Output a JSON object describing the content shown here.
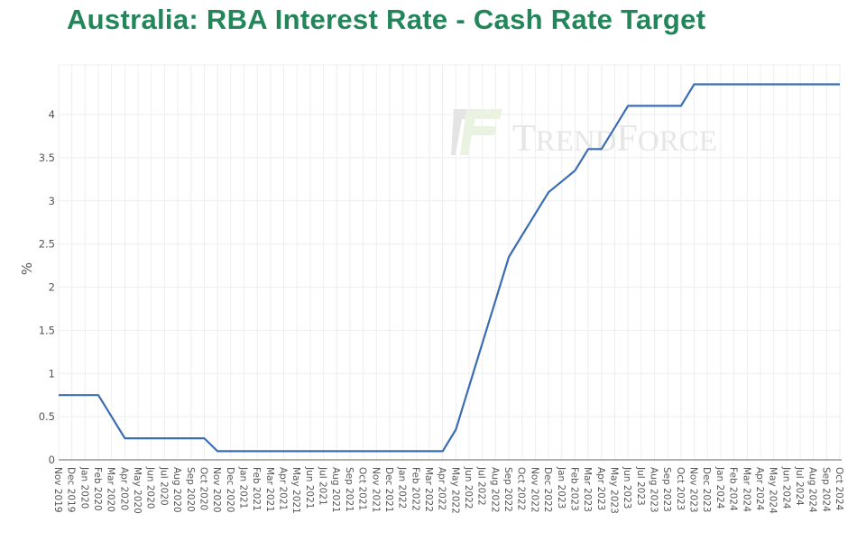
{
  "title": "Australia: RBA Interest Rate - Cash Rate Target",
  "watermark": {
    "text_big1": "T",
    "text_small1": "REND",
    "text_big2": "F",
    "text_small2": "ORCE"
  },
  "colors": {
    "title": "#23855a",
    "line": "#3a6db3",
    "grid": "#eeeeee",
    "axis": "#999999"
  },
  "chart_data": {
    "type": "line",
    "title": "Australia: RBA Interest Rate - Cash Rate Target",
    "xlabel": "",
    "ylabel": "%",
    "ylim": [
      0,
      4.5
    ],
    "yticks": [
      0,
      0.5,
      1,
      1.5,
      2,
      2.5,
      3,
      3.5,
      4
    ],
    "ytick_labels": [
      "0",
      "0.5",
      "1",
      "1.5",
      "2",
      "2.5",
      "3",
      "3.5",
      "4"
    ],
    "grid": true,
    "legend": "none",
    "categories": [
      "Nov 2019",
      "Dec 2019",
      "Jan 2020",
      "Feb 2020",
      "Mar 2020",
      "Apr 2020",
      "May 2020",
      "Jun 2020",
      "Jul 2020",
      "Aug 2020",
      "Sep 2020",
      "Oct 2020",
      "Nov 2020",
      "Dec 2020",
      "Jan 2021",
      "Feb 2021",
      "Mar 2021",
      "Apr 2021",
      "May 2021",
      "Jun 2021",
      "Jul 2021",
      "Aug 2021",
      "Sep 2021",
      "Oct 2021",
      "Nov 2021",
      "Dec 2021",
      "Jan 2022",
      "Feb 2022",
      "Mar 2022",
      "Apr 2022",
      "May 2022",
      "Jun 2022",
      "Jul 2022",
      "Aug 2022",
      "Sep 2022",
      "Oct 2022",
      "Nov 2022",
      "Dec 2022",
      "Jan 2023",
      "Feb 2023",
      "Mar 2023",
      "Apr 2023",
      "May 2023",
      "Jun 2023",
      "Jul 2023",
      "Aug 2023",
      "Sep 2023",
      "Oct 2023",
      "Nov 2023",
      "Dec 2023",
      "Jan 2024",
      "Feb 2024",
      "Mar 2024",
      "Apr 2024",
      "May 2024",
      "Jun 2024",
      "Jul 2024",
      "Aug 2024",
      "Sep 2024",
      "Oct 2024"
    ],
    "series": [
      {
        "name": "Cash Rate Target",
        "values": [
          0.75,
          0.75,
          0.75,
          0.75,
          0.5,
          0.25,
          0.25,
          0.25,
          0.25,
          0.25,
          0.25,
          0.25,
          0.1,
          0.1,
          0.1,
          0.1,
          0.1,
          0.1,
          0.1,
          0.1,
          0.1,
          0.1,
          0.1,
          0.1,
          0.1,
          0.1,
          0.1,
          0.1,
          0.1,
          0.1,
          0.35,
          0.85,
          1.35,
          1.85,
          2.35,
          2.6,
          2.85,
          3.1,
          3.225,
          3.35,
          3.6,
          3.6,
          3.85,
          4.1,
          4.1,
          4.1,
          4.1,
          4.1,
          4.35,
          4.35,
          4.35,
          4.35,
          4.35,
          4.35,
          4.35,
          4.35,
          4.35,
          4.35,
          4.35,
          4.35
        ]
      }
    ]
  }
}
